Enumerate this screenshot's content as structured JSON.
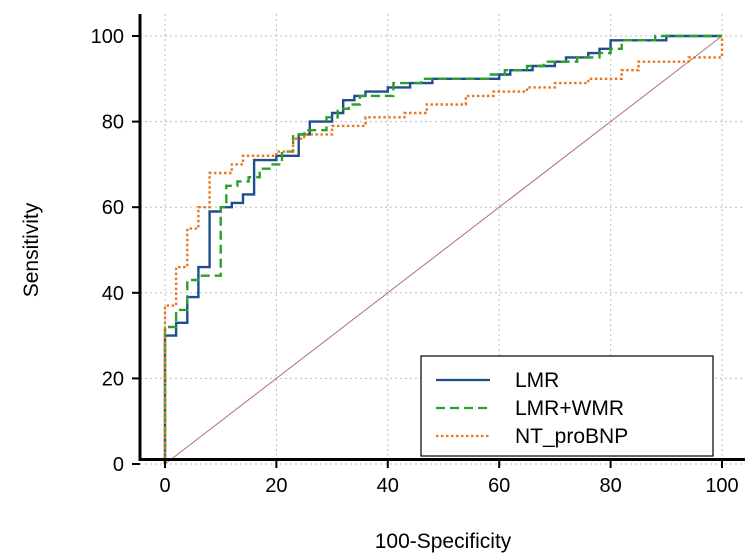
{
  "chart_data": {
    "type": "line",
    "title": "",
    "xlabel": "100-Specificity",
    "ylabel": "Sensitivity",
    "xlim": [
      0,
      100
    ],
    "ylim": [
      0,
      100
    ],
    "x_ticks": [
      "0",
      "20",
      "40",
      "60",
      "80",
      "100"
    ],
    "y_ticks": [
      "0",
      "20",
      "40",
      "60",
      "80",
      "100"
    ],
    "grid": true,
    "legend": "bottom-right",
    "reference_line": {
      "from": [
        0,
        0
      ],
      "to": [
        100,
        100
      ],
      "color": "#b07070"
    },
    "series": [
      {
        "name": "LMR",
        "color": "#1f4e8c",
        "style": "solid",
        "points": [
          [
            0,
            0
          ],
          [
            0,
            30
          ],
          [
            2,
            30
          ],
          [
            2,
            33
          ],
          [
            4,
            33
          ],
          [
            4,
            39
          ],
          [
            6,
            39
          ],
          [
            6,
            46
          ],
          [
            8,
            46
          ],
          [
            8,
            59
          ],
          [
            10,
            59
          ],
          [
            10,
            60
          ],
          [
            12,
            60
          ],
          [
            12,
            61
          ],
          [
            14,
            61
          ],
          [
            14,
            63
          ],
          [
            16,
            63
          ],
          [
            16,
            71
          ],
          [
            20,
            71
          ],
          [
            20,
            72
          ],
          [
            24,
            72
          ],
          [
            24,
            77
          ],
          [
            26,
            77
          ],
          [
            26,
            80
          ],
          [
            30,
            80
          ],
          [
            30,
            82
          ],
          [
            32,
            82
          ],
          [
            32,
            85
          ],
          [
            34,
            85
          ],
          [
            34,
            86
          ],
          [
            36,
            86
          ],
          [
            36,
            87
          ],
          [
            40,
            87
          ],
          [
            40,
            88
          ],
          [
            44,
            88
          ],
          [
            44,
            89
          ],
          [
            48,
            89
          ],
          [
            48,
            90
          ],
          [
            60,
            90
          ],
          [
            60,
            91
          ],
          [
            62,
            91
          ],
          [
            62,
            92
          ],
          [
            66,
            92
          ],
          [
            66,
            93
          ],
          [
            70,
            93
          ],
          [
            70,
            94
          ],
          [
            72,
            94
          ],
          [
            72,
            95
          ],
          [
            76,
            95
          ],
          [
            76,
            96
          ],
          [
            78,
            96
          ],
          [
            78,
            97
          ],
          [
            80,
            97
          ],
          [
            80,
            99
          ],
          [
            90,
            99
          ],
          [
            90,
            100
          ],
          [
            100,
            100
          ]
        ]
      },
      {
        "name": "LMR+WMR",
        "color": "#2ca02c",
        "style": "dashed",
        "points": [
          [
            0,
            0
          ],
          [
            0,
            32
          ],
          [
            2,
            32
          ],
          [
            2,
            36
          ],
          [
            4,
            36
          ],
          [
            4,
            43
          ],
          [
            6,
            43
          ],
          [
            6,
            44
          ],
          [
            10,
            44
          ],
          [
            10,
            60
          ],
          [
            11,
            60
          ],
          [
            11,
            65
          ],
          [
            13,
            65
          ],
          [
            13,
            66
          ],
          [
            15,
            66
          ],
          [
            15,
            67
          ],
          [
            17,
            67
          ],
          [
            17,
            69
          ],
          [
            19,
            69
          ],
          [
            19,
            70
          ],
          [
            21,
            70
          ],
          [
            21,
            73
          ],
          [
            23,
            73
          ],
          [
            23,
            77
          ],
          [
            25,
            77
          ],
          [
            25,
            78
          ],
          [
            29,
            78
          ],
          [
            29,
            81
          ],
          [
            31,
            81
          ],
          [
            31,
            83
          ],
          [
            33,
            83
          ],
          [
            33,
            84
          ],
          [
            35,
            84
          ],
          [
            35,
            86
          ],
          [
            41,
            86
          ],
          [
            41,
            89
          ],
          [
            46,
            89
          ],
          [
            46,
            90
          ],
          [
            58,
            90
          ],
          [
            58,
            91
          ],
          [
            61,
            91
          ],
          [
            61,
            92
          ],
          [
            65,
            92
          ],
          [
            65,
            93
          ],
          [
            68,
            93
          ],
          [
            68,
            94
          ],
          [
            74,
            94
          ],
          [
            74,
            95
          ],
          [
            78,
            95
          ],
          [
            78,
            96
          ],
          [
            80,
            96
          ],
          [
            80,
            97
          ],
          [
            82,
            97
          ],
          [
            82,
            99
          ],
          [
            88,
            99
          ],
          [
            88,
            100
          ],
          [
            100,
            100
          ]
        ]
      },
      {
        "name": "NT_proBNP",
        "color": "#e87722",
        "style": "dotted",
        "points": [
          [
            0,
            0
          ],
          [
            0,
            37
          ],
          [
            2,
            37
          ],
          [
            2,
            46
          ],
          [
            4,
            46
          ],
          [
            4,
            55
          ],
          [
            6,
            55
          ],
          [
            6,
            60
          ],
          [
            8,
            60
          ],
          [
            8,
            68
          ],
          [
            12,
            68
          ],
          [
            12,
            70
          ],
          [
            14,
            70
          ],
          [
            14,
            72
          ],
          [
            20,
            72
          ],
          [
            20,
            73
          ],
          [
            23,
            73
          ],
          [
            23,
            76
          ],
          [
            25,
            76
          ],
          [
            25,
            77
          ],
          [
            30,
            77
          ],
          [
            30,
            79
          ],
          [
            36,
            79
          ],
          [
            36,
            81
          ],
          [
            43,
            81
          ],
          [
            43,
            82
          ],
          [
            47,
            82
          ],
          [
            47,
            84
          ],
          [
            54,
            84
          ],
          [
            54,
            86
          ],
          [
            59,
            86
          ],
          [
            59,
            87
          ],
          [
            65,
            87
          ],
          [
            65,
            88
          ],
          [
            70,
            88
          ],
          [
            70,
            89
          ],
          [
            76,
            89
          ],
          [
            76,
            90
          ],
          [
            82,
            90
          ],
          [
            82,
            92
          ],
          [
            85,
            92
          ],
          [
            85,
            94
          ],
          [
            94,
            94
          ],
          [
            94,
            95
          ],
          [
            100,
            95
          ],
          [
            100,
            100
          ]
        ]
      }
    ]
  }
}
